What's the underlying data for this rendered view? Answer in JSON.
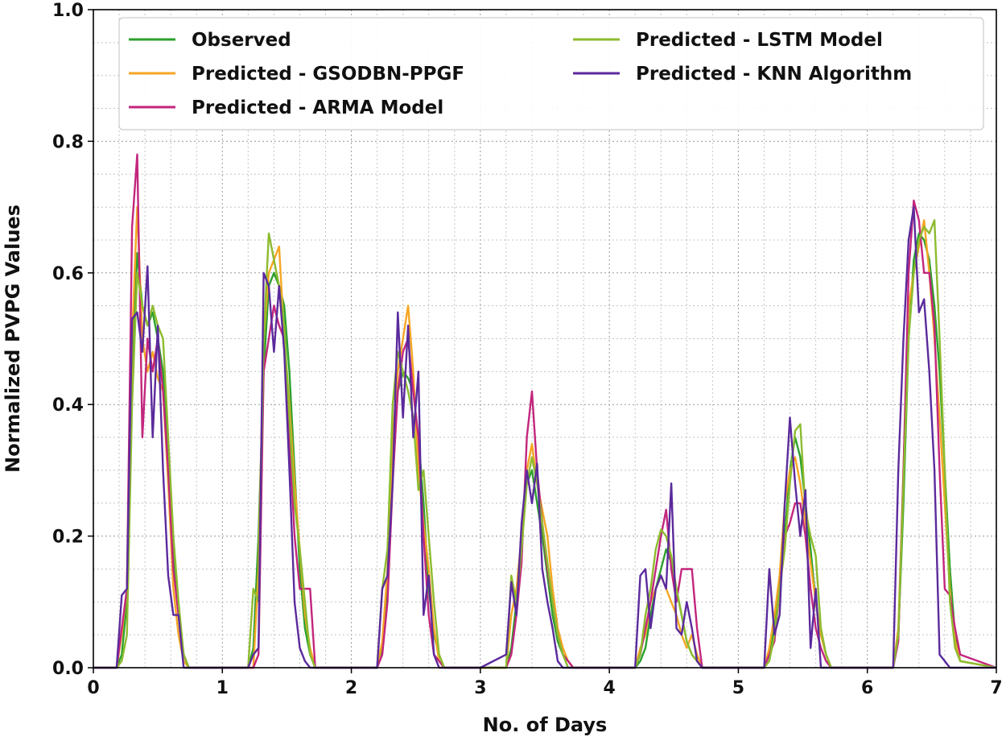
{
  "chart_data": {
    "type": "line",
    "title": "",
    "xlabel": "No. of Days",
    "ylabel": "Normalized PVPG Values",
    "xlim": [
      0,
      7
    ],
    "ylim": [
      0.0,
      1.0
    ],
    "xticks": [
      "0",
      "1",
      "2",
      "3",
      "4",
      "5",
      "6",
      "7"
    ],
    "yticks": [
      "0.0",
      "0.2",
      "0.4",
      "0.6",
      "0.8",
      "1.0"
    ],
    "grid": true,
    "grid_style": "dotted, major and minor",
    "legend_position": "top",
    "series": [
      {
        "name": "Observed",
        "color": "#2ca02c",
        "x": [
          0.0,
          0.18,
          0.22,
          0.26,
          0.3,
          0.34,
          0.38,
          0.42,
          0.46,
          0.5,
          0.54,
          0.58,
          0.62,
          0.66,
          0.7,
          0.74,
          1.0,
          1.2,
          1.24,
          1.28,
          1.32,
          1.36,
          1.4,
          1.44,
          1.48,
          1.52,
          1.56,
          1.6,
          1.64,
          1.68,
          1.72,
          2.0,
          2.2,
          2.24,
          2.28,
          2.32,
          2.36,
          2.4,
          2.44,
          2.48,
          2.52,
          2.56,
          2.6,
          2.64,
          2.68,
          2.72,
          3.0,
          3.2,
          3.24,
          3.28,
          3.32,
          3.36,
          3.4,
          3.44,
          3.48,
          3.52,
          3.56,
          3.6,
          3.64,
          3.68,
          3.72,
          4.0,
          4.2,
          4.24,
          4.28,
          4.32,
          4.36,
          4.4,
          4.44,
          4.48,
          4.52,
          4.56,
          4.6,
          4.64,
          4.68,
          4.72,
          5.0,
          5.2,
          5.24,
          5.28,
          5.32,
          5.36,
          5.4,
          5.44,
          5.48,
          5.52,
          5.56,
          5.6,
          5.64,
          5.68,
          5.72,
          6.0,
          6.2,
          6.24,
          6.28,
          6.32,
          6.36,
          6.4,
          6.44,
          6.48,
          6.52,
          6.56,
          6.6,
          6.64,
          6.68,
          6.72,
          7.0
        ],
        "y": [
          0.0,
          0.0,
          0.02,
          0.1,
          0.45,
          0.63,
          0.55,
          0.52,
          0.54,
          0.5,
          0.45,
          0.3,
          0.18,
          0.08,
          0.02,
          0.0,
          0.0,
          0.0,
          0.03,
          0.2,
          0.45,
          0.58,
          0.6,
          0.58,
          0.55,
          0.45,
          0.3,
          0.15,
          0.06,
          0.02,
          0.0,
          0.0,
          0.0,
          0.03,
          0.12,
          0.3,
          0.42,
          0.45,
          0.44,
          0.42,
          0.35,
          0.25,
          0.12,
          0.05,
          0.02,
          0.0,
          0.0,
          0.0,
          0.03,
          0.1,
          0.2,
          0.28,
          0.3,
          0.25,
          0.2,
          0.14,
          0.08,
          0.04,
          0.02,
          0.01,
          0.0,
          0.0,
          0.0,
          0.01,
          0.03,
          0.08,
          0.12,
          0.15,
          0.18,
          0.16,
          0.12,
          0.08,
          0.04,
          0.02,
          0.01,
          0.0,
          0.0,
          0.0,
          0.02,
          0.06,
          0.12,
          0.2,
          0.3,
          0.35,
          0.32,
          0.25,
          0.18,
          0.1,
          0.05,
          0.02,
          0.0,
          0.0,
          0.0,
          0.05,
          0.25,
          0.5,
          0.62,
          0.66,
          0.65,
          0.62,
          0.55,
          0.45,
          0.3,
          0.15,
          0.05,
          0.01,
          0.0
        ]
      },
      {
        "name": "Predicted - GSODBN-PPGF",
        "color": "#f5a623",
        "x": [
          0.0,
          0.18,
          0.22,
          0.26,
          0.3,
          0.34,
          0.38,
          0.42,
          0.46,
          0.5,
          0.54,
          0.58,
          0.62,
          0.66,
          0.7,
          0.74,
          1.0,
          1.2,
          1.24,
          1.28,
          1.32,
          1.36,
          1.4,
          1.44,
          1.48,
          1.52,
          1.56,
          1.6,
          1.64,
          1.68,
          1.72,
          2.0,
          2.2,
          2.24,
          2.28,
          2.32,
          2.36,
          2.4,
          2.44,
          2.48,
          2.52,
          2.56,
          2.6,
          2.64,
          2.68,
          2.72,
          3.0,
          3.2,
          3.24,
          3.28,
          3.32,
          3.36,
          3.4,
          3.44,
          3.48,
          3.52,
          3.56,
          3.6,
          3.64,
          3.68,
          3.72,
          4.0,
          4.2,
          4.24,
          4.28,
          4.32,
          4.36,
          4.4,
          4.44,
          4.48,
          4.52,
          4.56,
          4.6,
          4.64,
          4.68,
          4.72,
          5.0,
          5.2,
          5.24,
          5.28,
          5.32,
          5.36,
          5.4,
          5.44,
          5.48,
          5.52,
          5.56,
          5.6,
          5.64,
          5.68,
          5.72,
          6.0,
          6.2,
          6.24,
          6.28,
          6.32,
          6.36,
          6.4,
          6.44,
          6.48,
          6.52,
          6.56,
          6.6,
          6.64,
          6.68,
          6.72,
          7.0
        ],
        "y": [
          0.0,
          0.0,
          0.05,
          0.12,
          0.5,
          0.7,
          0.5,
          0.45,
          0.48,
          0.44,
          0.42,
          0.28,
          0.12,
          0.05,
          0.01,
          0.0,
          0.0,
          0.0,
          0.0,
          0.15,
          0.5,
          0.6,
          0.62,
          0.64,
          0.5,
          0.4,
          0.28,
          0.18,
          0.08,
          0.03,
          0.0,
          0.0,
          0.0,
          0.04,
          0.15,
          0.35,
          0.45,
          0.5,
          0.55,
          0.45,
          0.3,
          0.22,
          0.15,
          0.06,
          0.01,
          0.0,
          0.0,
          0.0,
          0.08,
          0.12,
          0.2,
          0.3,
          0.34,
          0.28,
          0.24,
          0.2,
          0.12,
          0.06,
          0.03,
          0.01,
          0.0,
          0.0,
          0.0,
          0.03,
          0.05,
          0.1,
          0.12,
          0.14,
          0.12,
          0.1,
          0.08,
          0.05,
          0.03,
          0.05,
          0.02,
          0.0,
          0.0,
          0.0,
          0.03,
          0.08,
          0.14,
          0.25,
          0.3,
          0.32,
          0.28,
          0.22,
          0.16,
          0.1,
          0.05,
          0.02,
          0.0,
          0.0,
          0.0,
          0.06,
          0.3,
          0.55,
          0.6,
          0.64,
          0.68,
          0.6,
          0.5,
          0.38,
          0.25,
          0.12,
          0.04,
          0.01,
          0.0
        ]
      },
      {
        "name": "Predicted - ARMA Model",
        "color": "#c2267d",
        "x": [
          0.0,
          0.18,
          0.22,
          0.26,
          0.3,
          0.34,
          0.38,
          0.42,
          0.46,
          0.5,
          0.54,
          0.58,
          0.62,
          0.66,
          0.7,
          0.74,
          1.0,
          1.2,
          1.24,
          1.28,
          1.32,
          1.36,
          1.4,
          1.44,
          1.48,
          1.52,
          1.56,
          1.6,
          1.64,
          1.68,
          1.72,
          2.0,
          2.2,
          2.24,
          2.28,
          2.32,
          2.36,
          2.4,
          2.44,
          2.48,
          2.52,
          2.56,
          2.6,
          2.64,
          2.68,
          2.72,
          3.0,
          3.2,
          3.24,
          3.28,
          3.32,
          3.36,
          3.4,
          3.44,
          3.48,
          3.52,
          3.56,
          3.6,
          3.64,
          3.68,
          3.72,
          4.0,
          4.2,
          4.24,
          4.28,
          4.32,
          4.36,
          4.4,
          4.44,
          4.48,
          4.52,
          4.56,
          4.6,
          4.64,
          4.68,
          4.72,
          5.0,
          5.2,
          5.24,
          5.28,
          5.32,
          5.36,
          5.4,
          5.44,
          5.48,
          5.52,
          5.56,
          5.6,
          5.64,
          5.68,
          5.72,
          6.0,
          6.2,
          6.24,
          6.28,
          6.32,
          6.36,
          6.4,
          6.44,
          6.48,
          6.52,
          6.56,
          6.6,
          6.64,
          6.68,
          6.72,
          7.0
        ],
        "y": [
          0.0,
          0.0,
          0.06,
          0.12,
          0.67,
          0.78,
          0.35,
          0.5,
          0.45,
          0.5,
          0.42,
          0.3,
          0.15,
          0.08,
          0.02,
          0.0,
          0.0,
          0.0,
          0.0,
          0.02,
          0.45,
          0.5,
          0.55,
          0.52,
          0.5,
          0.35,
          0.2,
          0.12,
          0.12,
          0.12,
          0.0,
          0.0,
          0.0,
          0.02,
          0.1,
          0.28,
          0.42,
          0.48,
          0.5,
          0.42,
          0.35,
          0.2,
          0.08,
          0.02,
          0.01,
          0.0,
          0.0,
          0.0,
          0.02,
          0.08,
          0.16,
          0.35,
          0.42,
          0.3,
          0.22,
          0.15,
          0.1,
          0.05,
          0.02,
          0.01,
          0.0,
          0.0,
          0.0,
          0.02,
          0.06,
          0.1,
          0.15,
          0.2,
          0.24,
          0.15,
          0.1,
          0.15,
          0.15,
          0.15,
          0.06,
          0.0,
          0.0,
          0.0,
          0.02,
          0.04,
          0.12,
          0.2,
          0.22,
          0.25,
          0.25,
          0.2,
          0.12,
          0.06,
          0.03,
          0.01,
          0.0,
          0.0,
          0.0,
          0.04,
          0.3,
          0.6,
          0.71,
          0.68,
          0.6,
          0.6,
          0.52,
          0.3,
          0.12,
          0.11,
          0.06,
          0.02,
          0.0
        ]
      },
      {
        "name": "Predicted - LSTM Model",
        "color": "#8dbb2f",
        "x": [
          0.0,
          0.18,
          0.22,
          0.26,
          0.3,
          0.34,
          0.38,
          0.42,
          0.46,
          0.5,
          0.54,
          0.58,
          0.62,
          0.66,
          0.7,
          0.74,
          1.0,
          1.2,
          1.24,
          1.28,
          1.32,
          1.36,
          1.4,
          1.44,
          1.48,
          1.52,
          1.56,
          1.6,
          1.64,
          1.68,
          1.72,
          2.0,
          2.2,
          2.24,
          2.28,
          2.32,
          2.36,
          2.4,
          2.44,
          2.48,
          2.52,
          2.56,
          2.6,
          2.64,
          2.68,
          2.72,
          3.0,
          3.2,
          3.24,
          3.28,
          3.32,
          3.36,
          3.4,
          3.44,
          3.48,
          3.52,
          3.56,
          3.6,
          3.64,
          3.68,
          3.72,
          4.0,
          4.2,
          4.24,
          4.28,
          4.32,
          4.36,
          4.4,
          4.44,
          4.48,
          4.52,
          4.56,
          4.6,
          4.64,
          4.68,
          4.72,
          5.0,
          5.2,
          5.24,
          5.28,
          5.32,
          5.36,
          5.4,
          5.44,
          5.48,
          5.52,
          5.56,
          5.6,
          5.64,
          5.68,
          5.72,
          6.0,
          6.2,
          6.24,
          6.28,
          6.32,
          6.36,
          6.4,
          6.44,
          6.48,
          6.52,
          6.56,
          6.6,
          6.64,
          6.68,
          6.72,
          7.0
        ],
        "y": [
          0.0,
          0.0,
          0.01,
          0.05,
          0.4,
          0.6,
          0.55,
          0.52,
          0.55,
          0.52,
          0.5,
          0.35,
          0.2,
          0.1,
          0.02,
          0.0,
          0.0,
          0.0,
          0.12,
          0.1,
          0.5,
          0.66,
          0.62,
          0.58,
          0.52,
          0.38,
          0.25,
          0.18,
          0.1,
          0.02,
          0.0,
          0.0,
          0.0,
          0.12,
          0.18,
          0.4,
          0.48,
          0.45,
          0.42,
          0.38,
          0.27,
          0.3,
          0.2,
          0.1,
          0.02,
          0.0,
          0.0,
          0.0,
          0.14,
          0.1,
          0.18,
          0.28,
          0.32,
          0.28,
          0.22,
          0.16,
          0.1,
          0.05,
          0.02,
          0.0,
          0.0,
          0.0,
          0.0,
          0.02,
          0.08,
          0.12,
          0.18,
          0.21,
          0.2,
          0.17,
          0.12,
          0.08,
          0.04,
          0.02,
          0.01,
          0.0,
          0.0,
          0.0,
          0.01,
          0.05,
          0.12,
          0.18,
          0.28,
          0.36,
          0.37,
          0.24,
          0.2,
          0.17,
          0.06,
          0.02,
          0.0,
          0.0,
          0.0,
          0.05,
          0.28,
          0.5,
          0.6,
          0.65,
          0.67,
          0.66,
          0.68,
          0.5,
          0.3,
          0.1,
          0.03,
          0.01,
          0.0
        ]
      },
      {
        "name": "Predicted - KNN Algorithm",
        "color": "#5b2a9c",
        "x": [
          0.0,
          0.18,
          0.22,
          0.26,
          0.3,
          0.34,
          0.38,
          0.42,
          0.46,
          0.5,
          0.54,
          0.58,
          0.62,
          0.66,
          0.7,
          0.74,
          1.0,
          1.2,
          1.24,
          1.28,
          1.32,
          1.36,
          1.4,
          1.44,
          1.48,
          1.52,
          1.56,
          1.6,
          1.64,
          1.68,
          1.72,
          2.0,
          2.2,
          2.24,
          2.28,
          2.32,
          2.36,
          2.4,
          2.44,
          2.48,
          2.52,
          2.56,
          2.6,
          2.64,
          2.68,
          2.72,
          3.0,
          3.2,
          3.24,
          3.28,
          3.32,
          3.36,
          3.4,
          3.44,
          3.48,
          3.52,
          3.56,
          3.6,
          3.64,
          3.68,
          3.72,
          4.0,
          4.2,
          4.24,
          4.28,
          4.32,
          4.36,
          4.4,
          4.44,
          4.48,
          4.52,
          4.56,
          4.6,
          4.64,
          4.68,
          4.72,
          5.0,
          5.2,
          5.24,
          5.28,
          5.32,
          5.36,
          5.4,
          5.44,
          5.48,
          5.52,
          5.56,
          5.6,
          5.64,
          5.68,
          5.72,
          6.0,
          6.2,
          6.24,
          6.28,
          6.32,
          6.36,
          6.4,
          6.44,
          6.48,
          6.52,
          6.56,
          6.6,
          6.64,
          6.68,
          6.72,
          7.0
        ],
        "y": [
          0.0,
          0.0,
          0.11,
          0.12,
          0.53,
          0.54,
          0.48,
          0.61,
          0.35,
          0.52,
          0.3,
          0.14,
          0.08,
          0.08,
          0.0,
          0.0,
          0.0,
          0.0,
          0.02,
          0.03,
          0.6,
          0.58,
          0.48,
          0.58,
          0.48,
          0.3,
          0.1,
          0.03,
          0.01,
          0.0,
          0.0,
          0.0,
          0.0,
          0.12,
          0.14,
          0.28,
          0.54,
          0.38,
          0.52,
          0.35,
          0.45,
          0.08,
          0.14,
          0.02,
          0.0,
          0.0,
          0.0,
          0.02,
          0.13,
          0.08,
          0.22,
          0.3,
          0.25,
          0.31,
          0.15,
          0.1,
          0.06,
          0.01,
          0.0,
          0.0,
          0.0,
          0.0,
          0.0,
          0.14,
          0.15,
          0.06,
          0.12,
          0.14,
          0.12,
          0.28,
          0.06,
          0.05,
          0.1,
          0.06,
          0.01,
          0.0,
          0.0,
          0.0,
          0.15,
          0.05,
          0.08,
          0.25,
          0.38,
          0.28,
          0.2,
          0.27,
          0.03,
          0.12,
          0.0,
          0.0,
          0.0,
          0.0,
          0.0,
          0.3,
          0.5,
          0.65,
          0.7,
          0.54,
          0.56,
          0.45,
          0.3,
          0.02,
          0.01,
          0.0,
          0.0,
          0.0,
          0.0
        ]
      }
    ]
  }
}
